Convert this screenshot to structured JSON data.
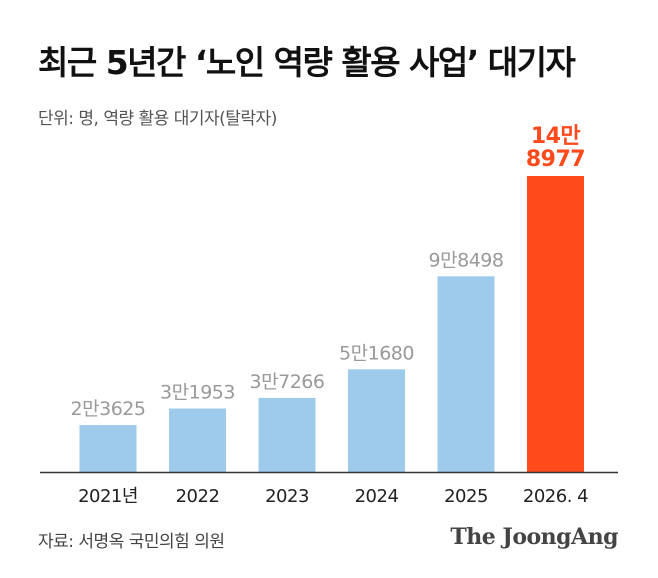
{
  "title": "최근 5년간 ‘노인 역량 활용 사업’ 대기자",
  "unit_note": "단위: 명, 역량 활용 대기자(탈락자)",
  "source": "자료: 서명옥 국민의힘 의원",
  "brand": "The JoongAng",
  "colors": {
    "bar": "#9ecbec",
    "highlight_bar": "#ff4a1c",
    "label": "#9a9a9a",
    "axis": "#333333"
  },
  "chart_data": {
    "type": "bar",
    "title": "최근 5년간 ‘노인 역량 활용 사업’ 대기자",
    "xlabel": "",
    "ylabel": "",
    "categories": [
      "2021년",
      "2022",
      "2023",
      "2024",
      "2025",
      "2026. 4"
    ],
    "values": [
      23625,
      31953,
      37266,
      51680,
      98498,
      148977
    ],
    "data_labels": [
      "2만3625",
      "3만1953",
      "3만7266",
      "5만1680",
      "9만8498",
      "14만\n8977"
    ],
    "highlight_index": 5,
    "ylim": [
      0,
      153000
    ],
    "grid": false,
    "legend": "none"
  }
}
